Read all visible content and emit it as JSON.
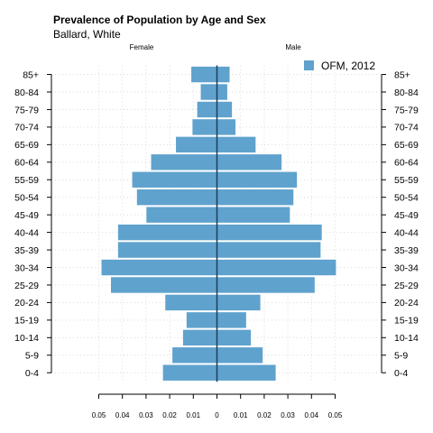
{
  "chart_data": {
    "type": "bar",
    "orientation": "horizontal-pyramid",
    "title": "Prevalence of Population by Age and Sex",
    "subtitle": "Ballard, White",
    "left_label": "Female",
    "right_label": "Male",
    "categories": [
      "0-4",
      "5-9",
      "10-14",
      "15-19",
      "20-24",
      "25-29",
      "30-34",
      "35-39",
      "40-44",
      "45-49",
      "50-54",
      "55-59",
      "60-64",
      "65-69",
      "70-74",
      "75-79",
      "80-84",
      "85+"
    ],
    "series": [
      {
        "name": "OFM, 2012",
        "female": [
          0.023,
          0.019,
          0.0145,
          0.013,
          0.022,
          0.045,
          0.049,
          0.042,
          0.042,
          0.03,
          0.034,
          0.036,
          0.028,
          0.0175,
          0.0105,
          0.0085,
          0.007,
          0.011
        ],
        "male": [
          0.025,
          0.0195,
          0.0145,
          0.0125,
          0.0185,
          0.0415,
          0.0505,
          0.044,
          0.0445,
          0.031,
          0.0325,
          0.034,
          0.0275,
          0.0165,
          0.008,
          0.0065,
          0.0045,
          0.0055
        ]
      }
    ],
    "x_ticks": [
      "0.05",
      "0.04",
      "0.03",
      "0.02",
      "0.01",
      "0",
      "0.01",
      "0.02",
      "0.03",
      "0.04",
      "0.05"
    ],
    "xlim": [
      -0.05,
      0.05
    ],
    "bar_color": "#5fa2cd",
    "center_line_color": "#1f3f5a",
    "grid": "dotted",
    "legend": "top-right"
  }
}
